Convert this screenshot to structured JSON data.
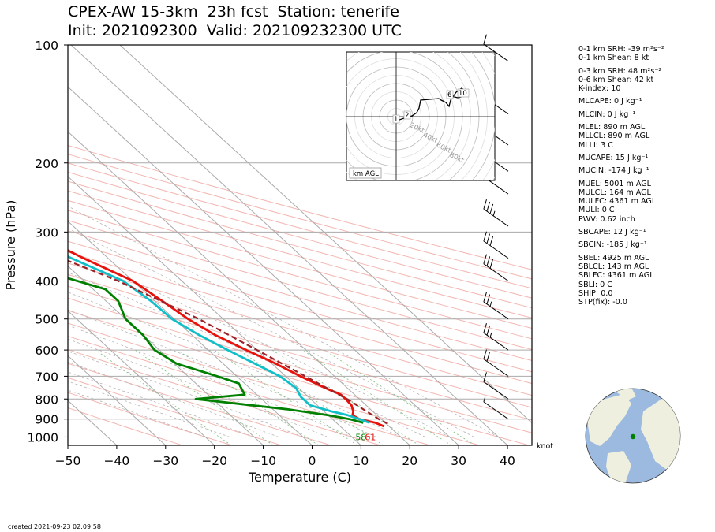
{
  "title": {
    "line1": "CPEX-AW 15-3km  23h fcst  Station: tenerife",
    "line2": "Init: 2021092300  Valid: 202109232300 UTC"
  },
  "chart_data": {
    "type": "line",
    "subtype": "skew-T log-P sounding",
    "xlabel": "Temperature (C)",
    "ylabel": "Pressure (hPa)",
    "x_ticks": [
      -50,
      -40,
      -30,
      -20,
      -10,
      0,
      10,
      20,
      30,
      40
    ],
    "y_ticks": [
      100,
      200,
      300,
      400,
      500,
      600,
      700,
      800,
      900,
      1000
    ],
    "pressure_range": [
      1050,
      100
    ],
    "temperature_range_at_bottom": [
      -50,
      45
    ],
    "log_pressure": true,
    "grid": true,
    "wind_unit_label": "knot",
    "surface_labels": {
      "dewpoint": "58",
      "temperature": "61"
    },
    "series": [
      {
        "name": "temperature",
        "color": "#e8120c",
        "points": [
          [
            100,
            -18.5
          ],
          [
            120,
            -21
          ],
          [
            150,
            -21
          ],
          [
            180,
            -19.5
          ],
          [
            200,
            -18
          ],
          [
            230,
            -16.5
          ],
          [
            250,
            -15.5
          ],
          [
            270,
            -13
          ],
          [
            300,
            -10
          ],
          [
            350,
            -5
          ],
          [
            400,
            0
          ],
          [
            450,
            1.5
          ],
          [
            500,
            2.8
          ],
          [
            550,
            4.8
          ],
          [
            600,
            7.8
          ],
          [
            650,
            10.8
          ],
          [
            700,
            13
          ],
          [
            750,
            15.5
          ],
          [
            780,
            17.2
          ],
          [
            800,
            17.2
          ],
          [
            830,
            17
          ],
          [
            860,
            16
          ],
          [
            880,
            15
          ],
          [
            900,
            15.5
          ],
          [
            920,
            18
          ],
          [
            940,
            19
          ]
        ]
      },
      {
        "name": "dewpoint",
        "color": "#008000",
        "points": [
          [
            100,
            -38
          ],
          [
            120,
            -39
          ],
          [
            140,
            -40.5
          ],
          [
            160,
            -41.5
          ],
          [
            180,
            -41
          ],
          [
            210,
            -40
          ],
          [
            240,
            -40
          ],
          [
            270,
            -26.5
          ],
          [
            300,
            -27.5
          ],
          [
            320,
            -30
          ],
          [
            350,
            -16
          ],
          [
            380,
            -15.5
          ],
          [
            420,
            -7.5
          ],
          [
            450,
            -7.5
          ],
          [
            500,
            -10
          ],
          [
            520,
            -10
          ],
          [
            550,
            -10
          ],
          [
            600,
            -11
          ],
          [
            650,
            -9.5
          ],
          [
            700,
            -4
          ],
          [
            730,
            -1.2
          ],
          [
            780,
            -2.5
          ],
          [
            800,
            -13.5
          ],
          [
            850,
            3
          ],
          [
            880,
            10
          ],
          [
            900,
            13.5
          ],
          [
            920,
            15.5
          ]
        ]
      },
      {
        "name": "wetbulb",
        "color": "#11bfc8",
        "points": [
          [
            100,
            -19
          ],
          [
            120,
            -21.5
          ],
          [
            150,
            -21.5
          ],
          [
            180,
            -20
          ],
          [
            200,
            -19
          ],
          [
            240,
            -17.5
          ],
          [
            270,
            -15
          ],
          [
            300,
            -12.5
          ],
          [
            350,
            -7.5
          ],
          [
            400,
            -2
          ],
          [
            450,
            -0.8
          ],
          [
            500,
            -0.5
          ],
          [
            550,
            1.5
          ],
          [
            600,
            4
          ],
          [
            650,
            6.5
          ],
          [
            700,
            8.8
          ],
          [
            750,
            9.5
          ],
          [
            790,
            8.5
          ],
          [
            830,
            8.5
          ],
          [
            860,
            11.5
          ],
          [
            880,
            14
          ],
          [
            900,
            15.5
          ],
          [
            920,
            16.8
          ]
        ]
      },
      {
        "name": "parcel",
        "color": "#9b2226",
        "style": "dashed",
        "points": [
          [
            100,
            -56
          ],
          [
            200,
            -36
          ],
          [
            300,
            -17
          ],
          [
            400,
            -3
          ],
          [
            500,
            5
          ],
          [
            600,
            10
          ],
          [
            700,
            14
          ],
          [
            800,
            17.5
          ],
          [
            900,
            19.5
          ],
          [
            930,
            20.5
          ]
        ]
      }
    ],
    "wind_barbs": [
      {
        "pressure": 110,
        "speed": "10 kt"
      },
      {
        "pressure": 150,
        "speed": "15 kt"
      },
      {
        "pressure": 180,
        "speed": "50 kt"
      },
      {
        "pressure": 210,
        "speed": "50 kt"
      },
      {
        "pressure": 240,
        "speed": "50 kt"
      },
      {
        "pressure": 290,
        "speed": "35 kt"
      },
      {
        "pressure": 350,
        "speed": "30 kt"
      },
      {
        "pressure": 400,
        "speed": "30 kt"
      },
      {
        "pressure": 500,
        "speed": "25 kt"
      },
      {
        "pressure": 600,
        "speed": "25 kt"
      },
      {
        "pressure": 700,
        "speed": "20 kt"
      },
      {
        "pressure": 800,
        "speed": "10 kt"
      },
      {
        "pressure": 900,
        "speed": "5 kt"
      }
    ],
    "hodograph": {
      "ring_labels": [
        "20kt",
        "40kt",
        "60kt",
        "80kt"
      ],
      "height_labels": [
        "1",
        "2",
        "6",
        "10"
      ],
      "legend": "km AGL"
    }
  },
  "stats": [
    {
      "text": "0-1 km SRH: -39 m²s⁻²"
    },
    {
      "text": "0-1 km Shear: 8 kt"
    },
    {
      "text": "0-3 km SRH: 48 m²s⁻²",
      "gap": true
    },
    {
      "text": "0-6 km Shear: 42 kt"
    },
    {
      "text": "K-index: 10"
    },
    {
      "text": "MLCAPE: 0 J kg⁻¹",
      "gap": true
    },
    {
      "text": "MLCIN: 0 J kg⁻¹",
      "gap": true
    },
    {
      "text": "MLEL: 890 m AGL",
      "gap": true
    },
    {
      "text": "MLLCL: 890 m AGL"
    },
    {
      "text": "MLLI: 3 C"
    },
    {
      "text": "MUCAPE: 15 J kg⁻¹",
      "gap": true
    },
    {
      "text": "MUCIN: -174 J kg⁻¹",
      "gap": true
    },
    {
      "text": "MUEL: 5001 m AGL",
      "gap": true
    },
    {
      "text": "MULCL: 164 m AGL"
    },
    {
      "text": "MULFC: 4361 m AGL"
    },
    {
      "text": "MULI: 0 C"
    },
    {
      "text": "PWV: 0.62 inch"
    },
    {
      "text": "SBCAPE: 12 J kg⁻¹",
      "gap": true
    },
    {
      "text": "SBCIN: -185 J kg⁻¹",
      "gap": true
    },
    {
      "text": "SBEL: 4925 m AGL",
      "gap": true
    },
    {
      "text": "SBLCL: 143 m AGL"
    },
    {
      "text": "SBLFC: 4361 m AGL"
    },
    {
      "text": "SBLI: 0 C"
    },
    {
      "text": "SHIP: 0.0"
    },
    {
      "text": "STP(fix): -0.0"
    }
  ],
  "globe": {
    "ocean_color": "#9cb9e0",
    "land_color": "#efefdf",
    "marker_color": "#008000"
  },
  "footer": {
    "created": "created 2021-09-23 02:09:58"
  }
}
